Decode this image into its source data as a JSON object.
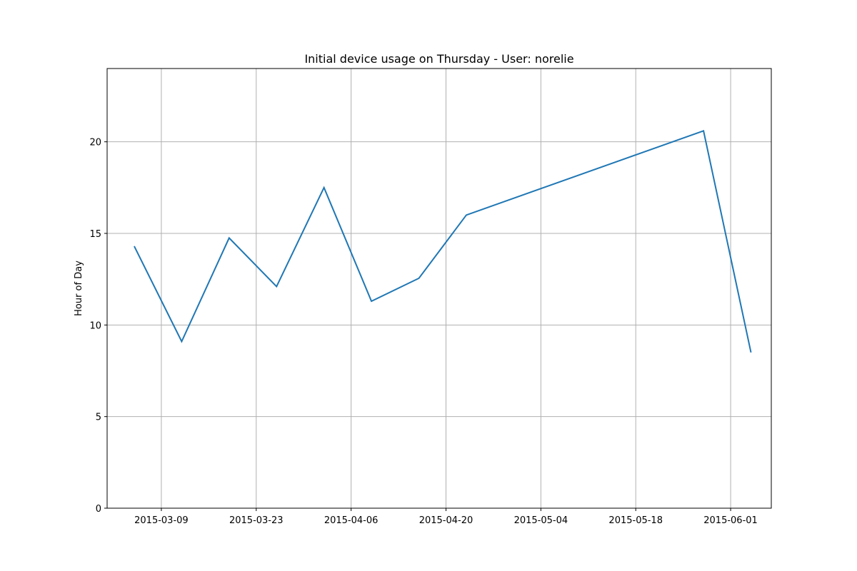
{
  "chart_data": {
    "type": "line",
    "title": "Initial device usage on Thursday - User: norelie",
    "xlabel": "",
    "ylabel": "Hour of Day",
    "grid": true,
    "legend": "none",
    "x": [
      "2015-03-05",
      "2015-03-12",
      "2015-03-19",
      "2015-03-26",
      "2015-04-02",
      "2015-04-09",
      "2015-04-16",
      "2015-04-23",
      "2015-05-28",
      "2015-06-04"
    ],
    "series": [
      {
        "name": "Hour of Day",
        "color": "#1f77b4",
        "values": [
          14.3,
          9.1,
          14.75,
          12.1,
          17.5,
          11.3,
          12.55,
          16.0,
          20.6,
          8.5
        ]
      }
    ],
    "ylim": [
      0,
      24
    ],
    "xlim": [
      "2015-03-01",
      "2015-06-07"
    ],
    "yticks": [
      0,
      5,
      10,
      15,
      20
    ],
    "ytick_labels": [
      "0",
      "5",
      "10",
      "15",
      "20"
    ],
    "xticks": [
      "2015-03-09",
      "2015-03-23",
      "2015-04-06",
      "2015-04-20",
      "2015-05-04",
      "2015-05-18",
      "2015-06-01"
    ],
    "xtick_labels": [
      "2015-03-09",
      "2015-03-23",
      "2015-04-06",
      "2015-04-20",
      "2015-05-04",
      "2015-05-18",
      "2015-06-01"
    ]
  }
}
